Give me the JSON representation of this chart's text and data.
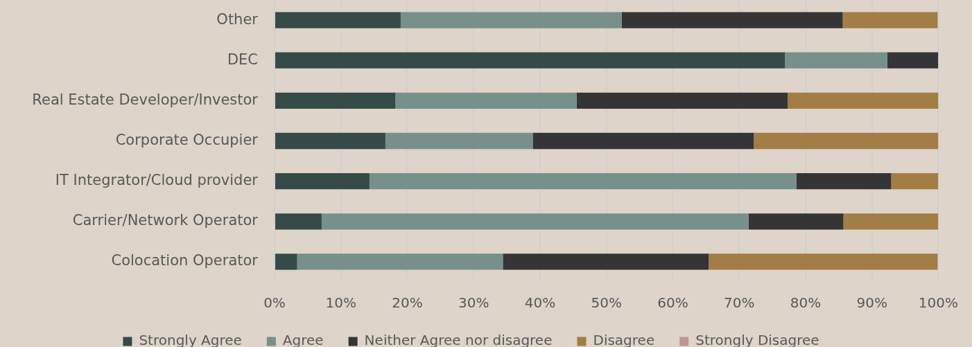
{
  "chart_data": {
    "type": "bar",
    "orientation": "horizontal",
    "stacked": true,
    "categories": [
      "Other",
      "DEC",
      "Real Estate Developer/Investor",
      "Corporate Occupier",
      "IT Integrator/Cloud provider",
      "Carrier/Network Operator",
      "Colocation Operator"
    ],
    "series": [
      {
        "name": "Strongly Agree",
        "color": "#364a48",
        "values": [
          19.0,
          76.9,
          18.2,
          16.7,
          14.3,
          7.1,
          3.4
        ]
      },
      {
        "name": "Agree",
        "color": "#77908a",
        "values": [
          33.3,
          15.4,
          27.3,
          22.2,
          64.3,
          64.3,
          31.0
        ]
      },
      {
        "name": "Neither Agree nor disagree",
        "color": "#353535",
        "values": [
          33.3,
          7.7,
          31.8,
          33.3,
          14.3,
          14.3,
          31.0
        ]
      },
      {
        "name": "Disagree",
        "color": "#a27e46",
        "values": [
          14.3,
          0,
          22.7,
          27.8,
          7.1,
          14.3,
          34.5
        ]
      },
      {
        "name": "Strongly Disagree",
        "color": "#c09490",
        "values": [
          0,
          0,
          0,
          0,
          0,
          0,
          0
        ]
      }
    ],
    "xlim": [
      0,
      100
    ],
    "xticks": [
      {
        "value": 0,
        "label": "0%"
      },
      {
        "value": 10,
        "label": "10%"
      },
      {
        "value": 20,
        "label": "20%"
      },
      {
        "value": 30,
        "label": "30%"
      },
      {
        "value": 40,
        "label": "40%"
      },
      {
        "value": 50,
        "label": "50%"
      },
      {
        "value": 60,
        "label": "60%"
      },
      {
        "value": 70,
        "label": "70%"
      },
      {
        "value": 80,
        "label": "80%"
      },
      {
        "value": 90,
        "label": "90%"
      },
      {
        "value": 100,
        "label": "100%"
      }
    ],
    "grid": "x",
    "legend": "bottom"
  }
}
